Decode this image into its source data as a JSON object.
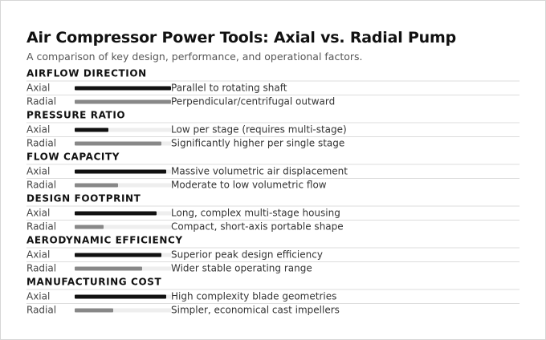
{
  "title": "Air Compressor Power Tools: Axial vs. Radial Pump",
  "subtitle": "A comparison of key design, performance, and operational factors.",
  "colors": {
    "axial": "#111111",
    "radial": "#888888",
    "track": "#eeeeee",
    "divider": "#dddddd"
  },
  "chart_data": {
    "type": "bar",
    "orientation": "horizontal",
    "grouping": "sections",
    "value_range": [
      0,
      1
    ],
    "series": [
      {
        "name": "Axial"
      },
      {
        "name": "Radial"
      }
    ],
    "sections": [
      {
        "label": "AIRFLOW DIRECTION",
        "rows": [
          {
            "series": "Axial",
            "value": 1.0,
            "note": "Parallel to rotating shaft"
          },
          {
            "series": "Radial",
            "value": 1.0,
            "note": "Perpendicular/centrifugal outward"
          }
        ]
      },
      {
        "label": "PRESSURE RATIO",
        "rows": [
          {
            "series": "Axial",
            "value": 0.35,
            "note": "Low per stage (requires multi-stage)"
          },
          {
            "series": "Radial",
            "value": 0.9,
            "note": "Significantly higher per single stage"
          }
        ]
      },
      {
        "label": "FLOW CAPACITY",
        "rows": [
          {
            "series": "Axial",
            "value": 0.95,
            "note": "Massive volumetric air displacement"
          },
          {
            "series": "Radial",
            "value": 0.45,
            "note": "Moderate to low volumetric flow"
          }
        ]
      },
      {
        "label": "DESIGN FOOTPRINT",
        "rows": [
          {
            "series": "Axial",
            "value": 0.85,
            "note": "Long, complex multi-stage housing"
          },
          {
            "series": "Radial",
            "value": 0.3,
            "note": "Compact, short-axis portable shape"
          }
        ]
      },
      {
        "label": "AERODYNAMIC EFFICIENCY",
        "rows": [
          {
            "series": "Axial",
            "value": 0.9,
            "note": "Superior peak design efficiency"
          },
          {
            "series": "Radial",
            "value": 0.7,
            "note": "Wider stable operating range"
          }
        ]
      },
      {
        "label": "MANUFACTURING COST",
        "rows": [
          {
            "series": "Axial",
            "value": 0.95,
            "note": "High complexity blade geometries"
          },
          {
            "series": "Radial",
            "value": 0.4,
            "note": "Simpler, economical cast impellers"
          }
        ]
      }
    ]
  }
}
